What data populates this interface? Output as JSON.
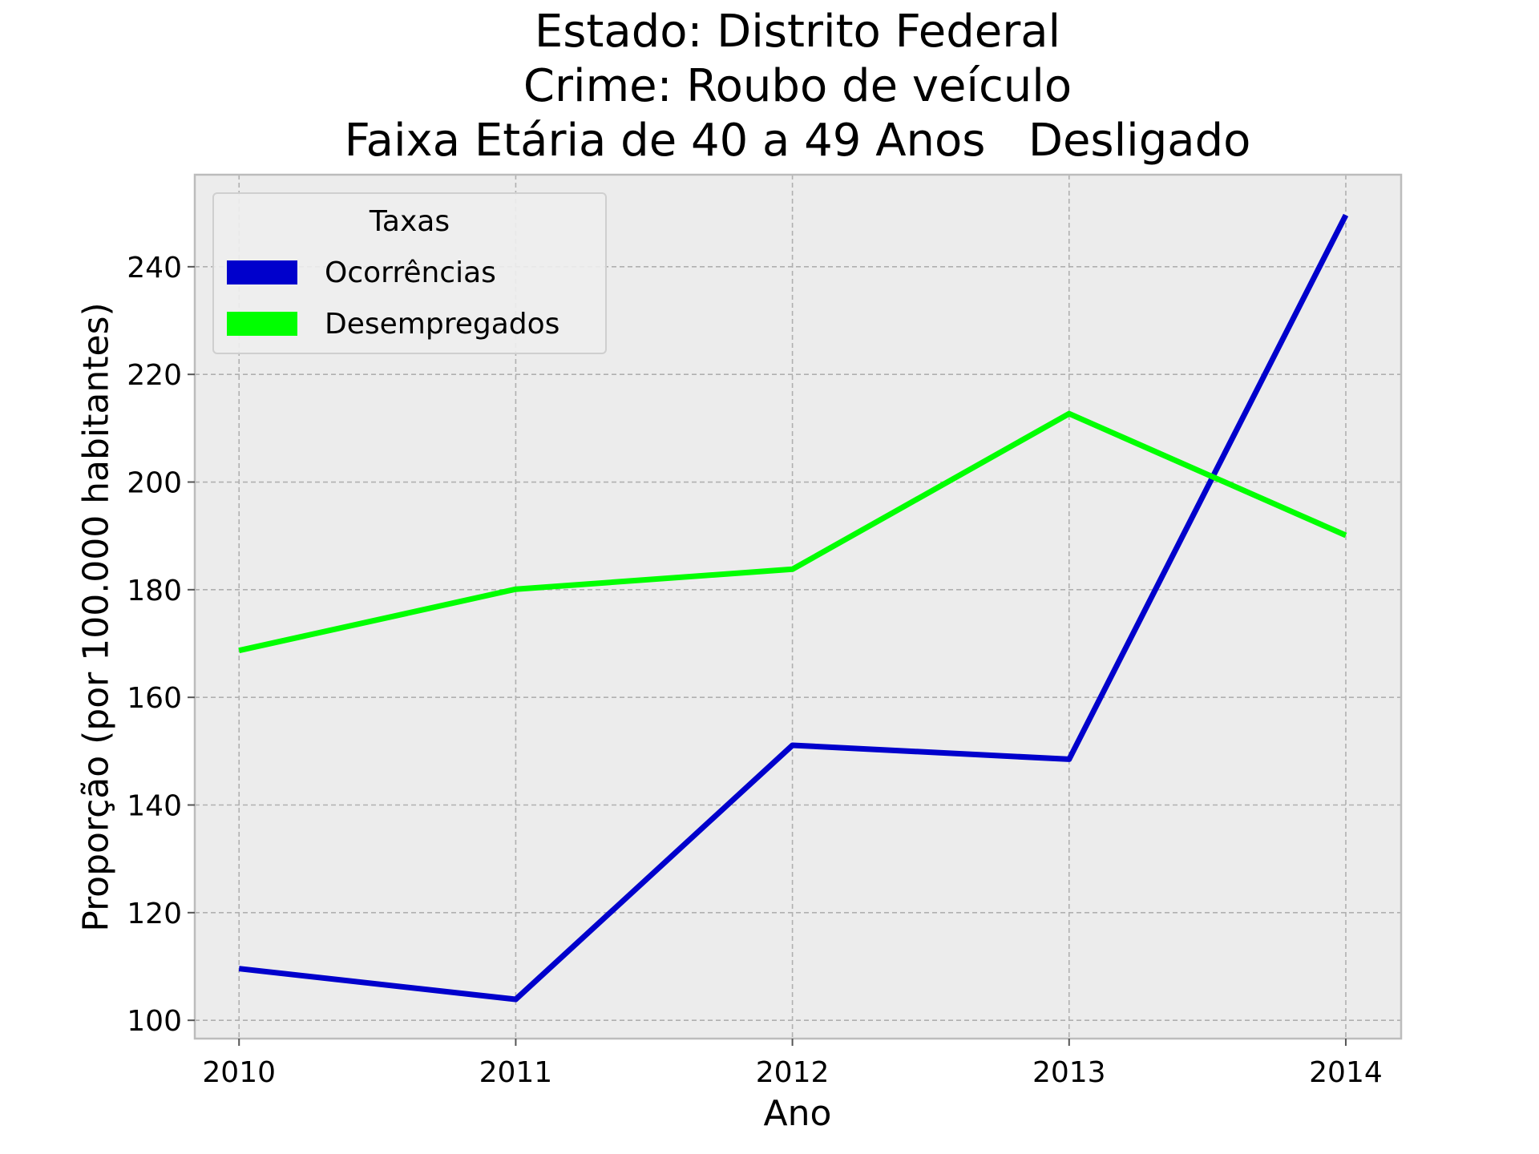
{
  "title_lines": [
    "Estado: Distrito Federal",
    "Crime: Roubo de veículo",
    "Faixa Etária de 40 a 49 Anos   Desligado"
  ],
  "colors": {
    "background": "#ffffff",
    "plot_background": "#ececec",
    "grid": "#b0b0b0",
    "spine": "#bcbcbc",
    "ocorrencias": "#0000cc",
    "desempregados": "#00ff00"
  },
  "legend": {
    "title": "Taxas",
    "placement": "upper left",
    "items": [
      {
        "label": "Ocorrências",
        "color": "#0000cc"
      },
      {
        "label": "Desempregados",
        "color": "#00ff00"
      }
    ]
  },
  "chart_data": {
    "type": "line",
    "title": "Estado: Distrito Federal\nCrime: Roubo de veículo\nFaixa Etária de 40 a 49 Anos   Desligado",
    "xlabel": "Ano",
    "ylabel": "Proporção (por 100.000 habitantes)",
    "x": [
      2010,
      2011,
      2012,
      2013,
      2014
    ],
    "xticks": [
      "2010",
      "2011",
      "2012",
      "2013",
      "2014"
    ],
    "xlim": [
      2009.84,
      2014.2
    ],
    "yticks": [
      100,
      120,
      140,
      160,
      180,
      200,
      220,
      240
    ],
    "ylim": [
      96.6,
      257.1
    ],
    "grid": true,
    "grid_style": "dashed",
    "legend_title": "Taxas",
    "legend_position": "upper left",
    "series": [
      {
        "name": "Ocorrências",
        "color": "#0000cc",
        "values": [
          109.6,
          103.9,
          151.1,
          148.5,
          249.6
        ]
      },
      {
        "name": "Desempregados",
        "color": "#00ff00",
        "values": [
          168.7,
          180.1,
          183.8,
          212.7,
          190.1
        ]
      }
    ]
  }
}
